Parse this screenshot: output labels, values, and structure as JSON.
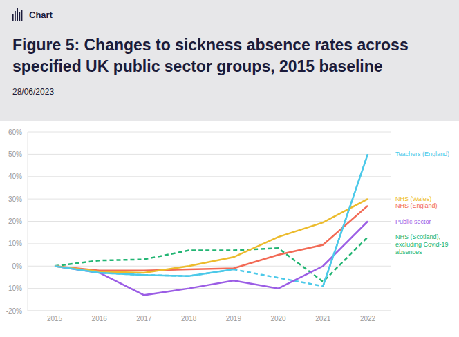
{
  "chart_data": {
    "type": "line",
    "annotations": [
      "Chart"
    ],
    "title": "Figure 5: Changes to sickness absence rates across specified UK public sector groups, 2015 baseline",
    "subtitle": "28/06/2023",
    "categories": [
      "2015",
      "2016",
      "2017",
      "2018",
      "2019",
      "2020",
      "2021",
      "2022"
    ],
    "series": [
      {
        "name": "NHS (Scotland), excluding Covid-19 absences",
        "color": "#22b573",
        "line_style": "dashed",
        "values": [
          0,
          2.5,
          3,
          7,
          7,
          8,
          -7,
          13
        ]
      },
      {
        "name": "Public sector",
        "color": "#9b5de5",
        "line_style": "solid",
        "values": [
          0,
          -3,
          -13,
          -10,
          -6.5,
          -10,
          0,
          20
        ]
      },
      {
        "name": "NHS (England)",
        "color": "#f26a55",
        "line_style": "solid",
        "values": [
          0,
          -2,
          -2,
          -1.5,
          -1,
          5,
          9.5,
          27
        ]
      },
      {
        "name": "NHS (Wales)",
        "color": "#ecbb2c",
        "line_style": "solid",
        "values": [
          0,
          -2.5,
          -3,
          0,
          4,
          13,
          19.5,
          30
        ]
      },
      {
        "name": "Teachers (England)",
        "color": "#4cc9e9",
        "line_style": "solid",
        "values": [
          0,
          -3,
          -4,
          -4.5,
          -1.5,
          null,
          -9,
          50
        ]
      }
    ],
    "ylim": [
      -20,
      60
    ],
    "yticks": [
      {
        "value": -20,
        "label": "-20%"
      },
      {
        "value": -10,
        "label": "-10%"
      },
      {
        "value": 0,
        "label": "0%"
      },
      {
        "value": 10,
        "label": "10%"
      },
      {
        "value": 20,
        "label": "20%"
      },
      {
        "value": 30,
        "label": "30%"
      },
      {
        "value": 40,
        "label": "40%"
      },
      {
        "value": 50,
        "label": "50%"
      },
      {
        "value": 60,
        "label": "60%"
      }
    ],
    "grid": true
  }
}
